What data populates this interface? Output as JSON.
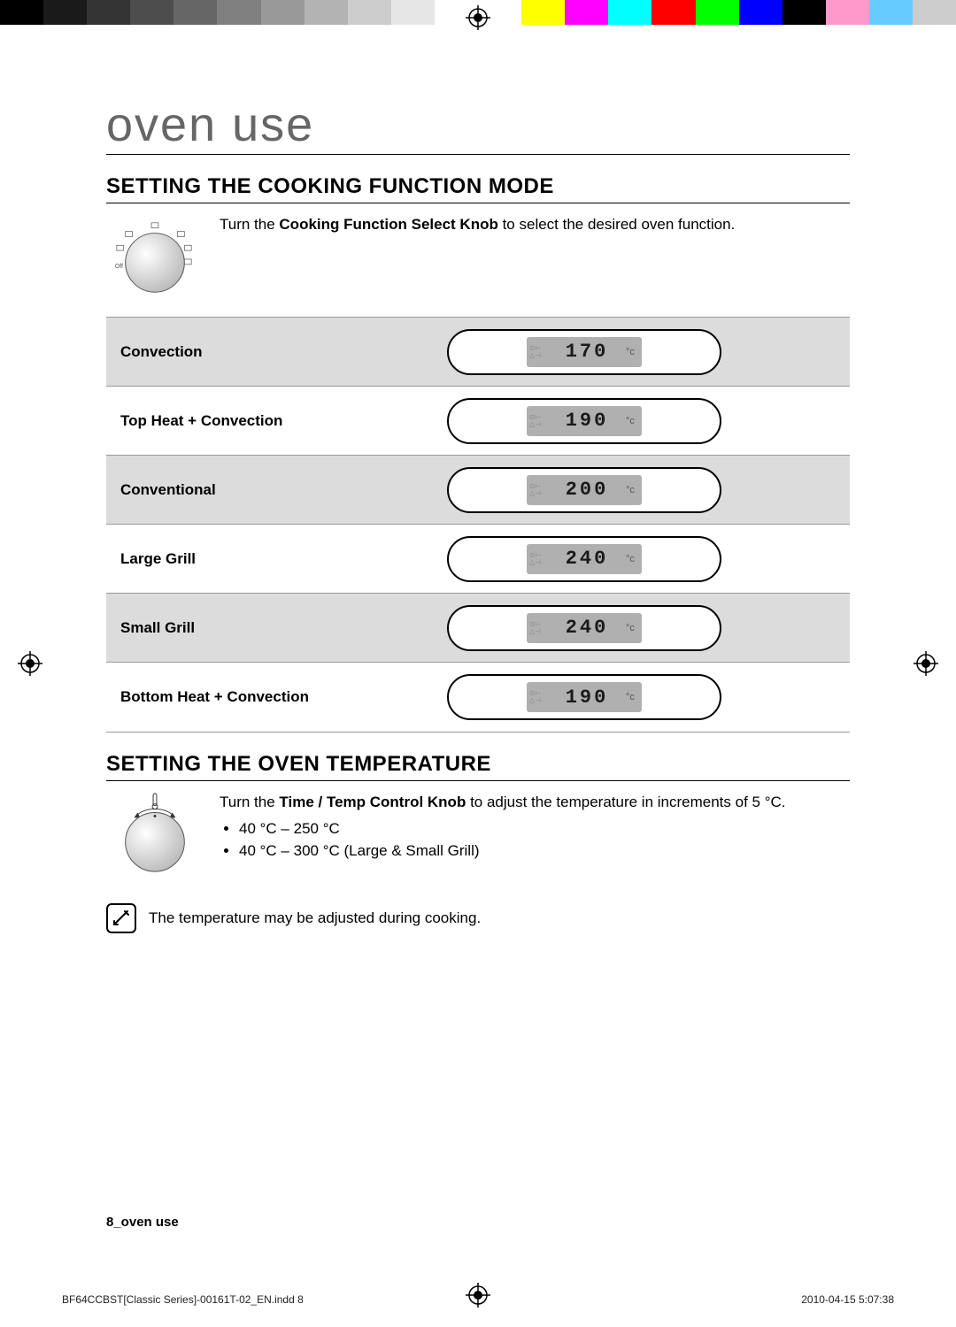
{
  "colorbar": [
    "#000000",
    "#1a1a1a",
    "#333333",
    "#4d4d4d",
    "#666666",
    "#808080",
    "#999999",
    "#b3b3b3",
    "#cccccc",
    "#e6e6e6",
    "#ffffff",
    "#ffffff",
    "#ffff00",
    "#ff00ff",
    "#00ffff",
    "#ff0000",
    "#00ff00",
    "#0000ff",
    "#000000",
    "#ff99cc",
    "#66ccff",
    "#cccccc"
  ],
  "page_title": "oven use",
  "section1": {
    "heading": "SETTING THE COOKING FUNCTION MODE",
    "intro_pre": "Turn the ",
    "intro_bold": "Cooking Function Select Knob",
    "intro_post": " to select the desired oven function.",
    "knob_labels": [
      "Off"
    ]
  },
  "functions": [
    {
      "label": "Convection",
      "display": "170",
      "unit": "°c",
      "shaded": true
    },
    {
      "label": "Top Heat + Convection",
      "display": "190",
      "unit": "°c",
      "shaded": false
    },
    {
      "label": "Conventional",
      "display": "200",
      "unit": "°c",
      "shaded": true
    },
    {
      "label": "Large Grill",
      "display": "240",
      "unit": "°c",
      "shaded": false
    },
    {
      "label": "Small Grill",
      "display": "240",
      "unit": "°c",
      "shaded": true
    },
    {
      "label": "Bottom Heat + Convection",
      "display": "190",
      "unit": "°c",
      "shaded": false
    }
  ],
  "section2": {
    "heading": "SETTING THE OVEN TEMPERATURE",
    "intro_pre": "Turn the ",
    "intro_bold": "Time / Temp Control Knob",
    "intro_post": " to adjust the temperature in increments of 5 °C.",
    "bullets": [
      "40 °C – 250 °C",
      "40 °C – 300 °C (Large & Small Grill)"
    ],
    "note": "The temperature may be adjusted during cooking."
  },
  "footer": {
    "page_label": "8_oven use",
    "file": "BF64CCBST[Classic Series]-00161T-02_EN.indd   8",
    "timestamp": "2010-04-15     5:07:38"
  },
  "style": {
    "shaded_bg": "#dcdcdc",
    "lcd_bg": "#b0b0b0",
    "title_color": "#666666"
  }
}
